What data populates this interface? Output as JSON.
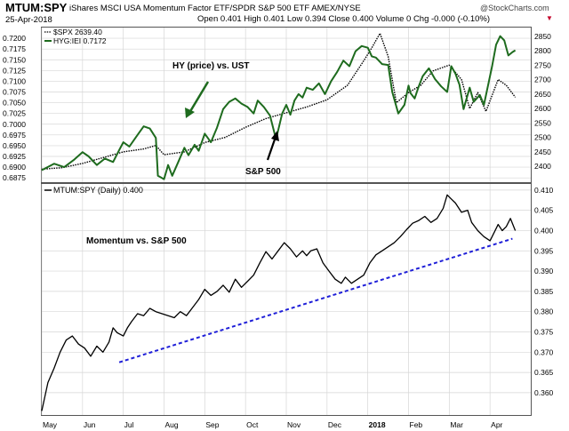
{
  "header": {
    "symbol": "MTUM:SPY",
    "description": "iShares MSCI USA Momentum Factor ETF/SPDR S&P 500 ETF  AMEX/NYSE",
    "watermark": "@StockCharts.com",
    "date": "25-Apr-2018",
    "ohlc": "Open 0.401  High 0.401  Low 0.394  Close 0.400  Volume 0  Chg -0.000 (-0.10%)",
    "down_marker": "▼"
  },
  "colors": {
    "hyg_line": "#1e6b1e",
    "spx_line": "#000000",
    "momentum_line": "#000000",
    "trendline": "#1f1fd8",
    "annotation": "#1e6b1e",
    "grid": "#d6d6d6",
    "down_marker": "#c4002a"
  },
  "chart_data": [
    {
      "type": "line",
      "panel": "top",
      "legend": [
        {
          "text": "$SPX 2639.40",
          "marker": "dotted-black"
        },
        {
          "text": "HYG:IEI 0.7172",
          "marker": "solid-green"
        }
      ],
      "left_axis": {
        "ticks": [
          "0.7200",
          "0.7175",
          "0.7150",
          "0.7125",
          "0.7100",
          "0.7075",
          "0.7050",
          "0.7025",
          "0.7000",
          "0.6975",
          "0.6950",
          "0.6925",
          "0.6900",
          "0.6875"
        ],
        "ylim": [
          0.6865,
          0.7225
        ]
      },
      "right_axis": {
        "ticks": [
          "2850",
          "2800",
          "2750",
          "2700",
          "2650",
          "2600",
          "2550",
          "2500",
          "2450",
          "2400"
        ],
        "ylim": [
          2345,
          2880
        ]
      },
      "x_range": [
        0,
        12
      ],
      "series": [
        {
          "name": "HYG:IEI",
          "axis": "left",
          "x": [
            0.0,
            0.3,
            0.55,
            0.8,
            1.0,
            1.15,
            1.35,
            1.55,
            1.75,
            1.9,
            2.0,
            2.15,
            2.35,
            2.5,
            2.65,
            2.8,
            2.85,
            3.0,
            3.1,
            3.2,
            3.35,
            3.5,
            3.6,
            3.75,
            3.85,
            4.0,
            4.15,
            4.3,
            4.45,
            4.6,
            4.75,
            4.9,
            5.05,
            5.2,
            5.3,
            5.45,
            5.6,
            5.75,
            5.9,
            6.0,
            6.1,
            6.2,
            6.3,
            6.4,
            6.5,
            6.65,
            6.8,
            6.95,
            7.1,
            7.25,
            7.4,
            7.55,
            7.7,
            7.85,
            8.0,
            8.1,
            8.2,
            8.35,
            8.5,
            8.6,
            8.75,
            8.9,
            9.0,
            9.05,
            9.15,
            9.25,
            9.35,
            9.5,
            9.65,
            9.8,
            9.95,
            10.05,
            10.15,
            10.25,
            10.35,
            10.5,
            10.6,
            10.75,
            10.85,
            10.95,
            11.05,
            11.15,
            11.25,
            11.35,
            11.45,
            11.55,
            11.62
          ],
          "values": [
            0.6893,
            0.6908,
            0.69,
            0.6918,
            0.6935,
            0.6925,
            0.6905,
            0.692,
            0.6912,
            0.694,
            0.6958,
            0.6948,
            0.6975,
            0.6995,
            0.699,
            0.6968,
            0.688,
            0.6872,
            0.6905,
            0.688,
            0.6912,
            0.6945,
            0.6928,
            0.6952,
            0.6938,
            0.6978,
            0.6958,
            0.6992,
            0.7035,
            0.7052,
            0.706,
            0.7048,
            0.704,
            0.7025,
            0.7055,
            0.704,
            0.702,
            0.6965,
            0.7025,
            0.7045,
            0.7022,
            0.7055,
            0.707,
            0.7062,
            0.7085,
            0.708,
            0.7095,
            0.707,
            0.71,
            0.7122,
            0.7148,
            0.7135,
            0.717,
            0.7182,
            0.7178,
            0.7158,
            0.7155,
            0.714,
            0.7138,
            0.7075,
            0.7025,
            0.7045,
            0.709,
            0.7072,
            0.706,
            0.7088,
            0.7112,
            0.713,
            0.7105,
            0.7088,
            0.7075,
            0.7135,
            0.7118,
            0.7092,
            0.7035,
            0.7085,
            0.7052,
            0.7068,
            0.7045,
            0.709,
            0.7135,
            0.7185,
            0.7205,
            0.7195,
            0.716,
            0.7168,
            0.7172
          ]
        },
        {
          "name": "$SPX",
          "axis": "right",
          "x": [
            0.0,
            0.5,
            1.0,
            1.5,
            2.0,
            2.5,
            2.8,
            3.0,
            3.5,
            4.0,
            4.5,
            5.0,
            5.5,
            6.0,
            6.5,
            7.0,
            7.5,
            7.9,
            8.1,
            8.3,
            8.5,
            8.7,
            9.0,
            9.3,
            9.6,
            10.0,
            10.3,
            10.5,
            10.7,
            10.9,
            11.2,
            11.4,
            11.62
          ],
          "values": [
            2390,
            2395,
            2410,
            2430,
            2450,
            2460,
            2472,
            2440,
            2450,
            2482,
            2500,
            2535,
            2565,
            2585,
            2605,
            2630,
            2680,
            2765,
            2810,
            2860,
            2780,
            2620,
            2655,
            2680,
            2730,
            2750,
            2700,
            2600,
            2655,
            2590,
            2700,
            2680,
            2639
          ]
        }
      ],
      "annotations": [
        {
          "text": "HY (price) vs. UST"
        },
        {
          "text": "S&P 500"
        }
      ]
    },
    {
      "type": "line",
      "panel": "bottom",
      "legend": [
        {
          "text": "MTUM:SPY (Daily) 0.400",
          "marker": "solid-black"
        }
      ],
      "right_axis": {
        "ticks": [
          "0.410",
          "0.405",
          "0.400",
          "0.395",
          "0.390",
          "0.385",
          "0.380",
          "0.375",
          "0.370",
          "0.365",
          "0.360"
        ],
        "ylim": [
          0.3545,
          0.4115
        ]
      },
      "x_range": [
        0,
        12
      ],
      "x_tick_labels": [
        "May",
        "Jun",
        "Jul",
        "Aug",
        "Sep",
        "Oct",
        "Nov",
        "Dec",
        "2018",
        "Feb",
        "Mar",
        "Apr"
      ],
      "series": [
        {
          "name": "MTUM:SPY",
          "x": [
            0.0,
            0.15,
            0.3,
            0.45,
            0.6,
            0.75,
            0.9,
            1.05,
            1.2,
            1.35,
            1.5,
            1.65,
            1.75,
            1.85,
            2.0,
            2.1,
            2.2,
            2.35,
            2.5,
            2.65,
            2.8,
            2.95,
            3.1,
            3.25,
            3.4,
            3.55,
            3.7,
            3.85,
            4.0,
            4.15,
            4.3,
            4.45,
            4.6,
            4.75,
            4.9,
            5.05,
            5.2,
            5.35,
            5.5,
            5.65,
            5.8,
            5.95,
            6.1,
            6.25,
            6.4,
            6.5,
            6.6,
            6.75,
            6.9,
            7.05,
            7.2,
            7.35,
            7.45,
            7.6,
            7.75,
            7.9,
            8.05,
            8.2,
            8.35,
            8.5,
            8.65,
            8.8,
            8.95,
            9.1,
            9.25,
            9.4,
            9.55,
            9.7,
            9.85,
            9.95,
            10.05,
            10.15,
            10.3,
            10.45,
            10.55,
            10.7,
            10.85,
            11.0,
            11.1,
            11.2,
            11.3,
            11.4,
            11.5,
            11.62
          ],
          "values": [
            0.3555,
            0.3625,
            0.366,
            0.37,
            0.373,
            0.374,
            0.372,
            0.371,
            0.369,
            0.3715,
            0.37,
            0.3725,
            0.376,
            0.3748,
            0.374,
            0.376,
            0.3775,
            0.3795,
            0.379,
            0.3808,
            0.38,
            0.3795,
            0.379,
            0.3785,
            0.38,
            0.379,
            0.381,
            0.383,
            0.3855,
            0.384,
            0.385,
            0.3865,
            0.3848,
            0.388,
            0.386,
            0.3875,
            0.389,
            0.392,
            0.3948,
            0.393,
            0.395,
            0.397,
            0.3955,
            0.3935,
            0.395,
            0.3938,
            0.395,
            0.3955,
            0.392,
            0.39,
            0.388,
            0.387,
            0.3885,
            0.387,
            0.388,
            0.389,
            0.392,
            0.394,
            0.395,
            0.396,
            0.397,
            0.3985,
            0.4002,
            0.4018,
            0.4025,
            0.4035,
            0.402,
            0.403,
            0.4055,
            0.4088,
            0.4078,
            0.4068,
            0.4045,
            0.405,
            0.402,
            0.4,
            0.3985,
            0.3975,
            0.3995,
            0.4015,
            0.4,
            0.401,
            0.403,
            0.4
          ]
        },
        {
          "name": "trendline",
          "style": "dashed",
          "x": [
            1.9,
            11.55
          ],
          "values": [
            0.3675,
            0.398
          ]
        }
      ],
      "annotations": [
        {
          "text": "Momentum vs. S&P 500"
        }
      ]
    }
  ]
}
